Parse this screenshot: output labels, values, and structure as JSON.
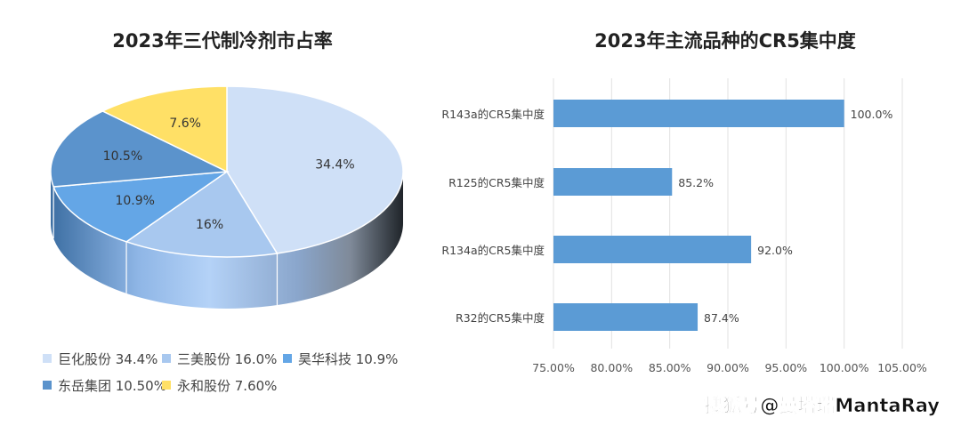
{
  "chart_data": [
    {
      "type": "pie",
      "title": "2023年三代制冷剂市占率",
      "slices": [
        {
          "name": "巨化股份",
          "value": 34.4,
          "label": "34.4%",
          "legend": "巨化股份 34.4%",
          "color": "#cfe0f7"
        },
        {
          "name": "三美股份",
          "value": 16.0,
          "label": "16%",
          "legend": "三美股份 16.0%",
          "color": "#a8c8ef"
        },
        {
          "name": "昊华科技",
          "value": 10.9,
          "label": "10.9%",
          "legend": "昊华科技 10.9%",
          "color": "#64a6e6"
        },
        {
          "name": "东岳集团",
          "value": 10.5,
          "label": "10.5%",
          "legend": "东岳集团 10.50%",
          "color": "#5b93cc"
        },
        {
          "name": "永和股份",
          "value": 7.6,
          "label": "7.6%",
          "legend": "永和股份 7.60%",
          "color": "#ffe066"
        }
      ],
      "legend_position": "bottom"
    },
    {
      "type": "bar",
      "orientation": "horizontal",
      "title": "2023年主流品种的CR5集中度",
      "categories": [
        "R143a的CR5集中度",
        "R125的CR5集中度",
        "R134a的CR5集中度",
        "R32的CR5集中度"
      ],
      "values": [
        100.0,
        85.2,
        92.0,
        87.4
      ],
      "data_labels": [
        "100.0%",
        "85.2%",
        "92.0%",
        "87.4%"
      ],
      "xlim": [
        75,
        105
      ],
      "xticks": [
        "75.00%",
        "80.00%",
        "85.00%",
        "90.00%",
        "95.00%",
        "100.00%",
        "105.00%"
      ],
      "grid": true,
      "color": "#5b9bd5"
    }
  ],
  "watermark": "搜狐号@曼塔瑞MantaRay"
}
